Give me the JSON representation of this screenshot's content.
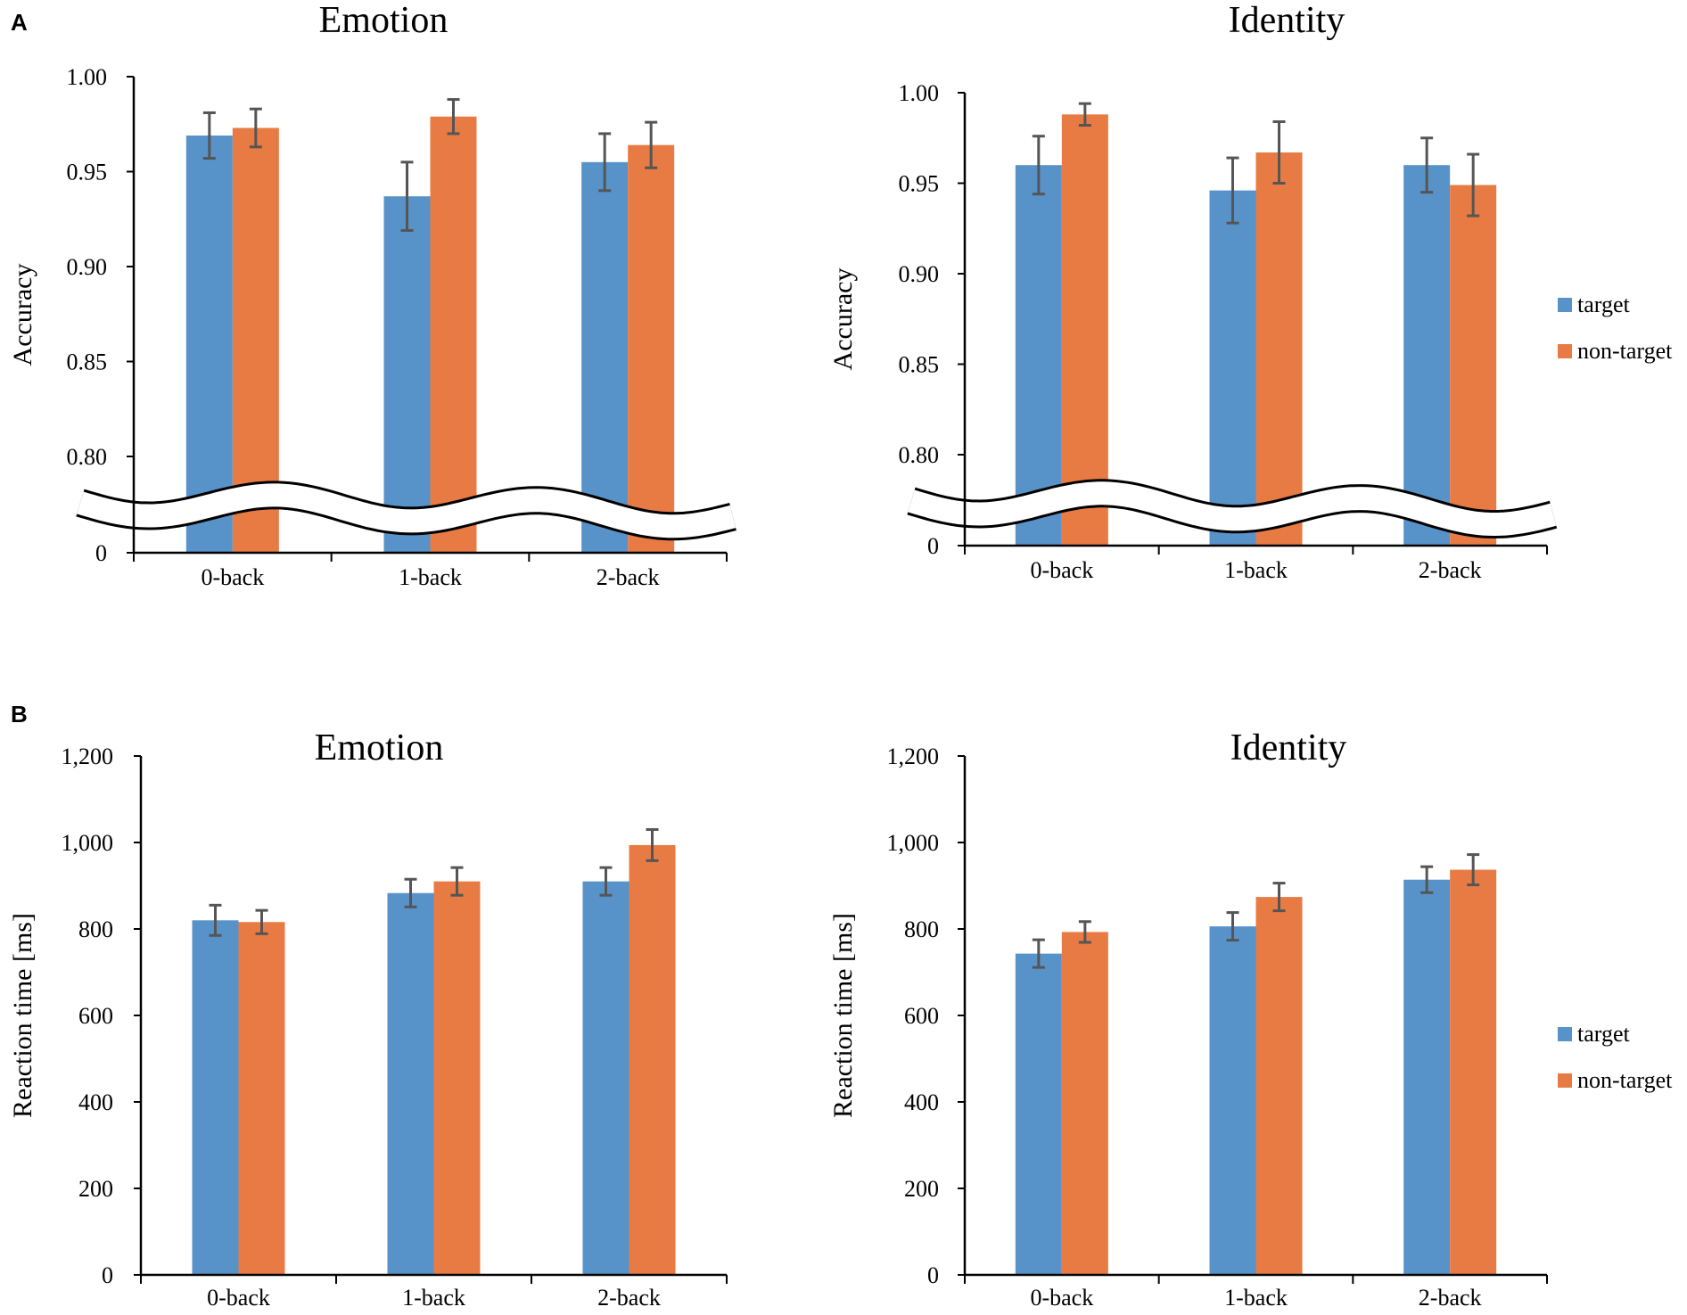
{
  "panels": {
    "a": {
      "label": "A"
    },
    "b": {
      "label": "B"
    }
  },
  "colors": {
    "target": "#5793c9",
    "non_target": "#e87b43",
    "error_bar": "#555555",
    "axis": "#000000"
  },
  "legend": {
    "target": "target",
    "non_target": "non-target"
  },
  "chart_data": [
    {
      "type": "bar",
      "panel": "A",
      "title": "Emotion",
      "xlabel": "",
      "ylabel": "Accuracy",
      "ylim": [
        0.8,
        1.0
      ],
      "axis_break": true,
      "yticks": [
        "0",
        "0.80",
        "0.85",
        "0.90",
        "0.95",
        "1.00"
      ],
      "categories": [
        "0-back",
        "1-back",
        "2-back"
      ],
      "series": [
        {
          "name": "target",
          "values": [
            0.969,
            0.937,
            0.955
          ],
          "errors": [
            0.012,
            0.018,
            0.015
          ]
        },
        {
          "name": "non-target",
          "values": [
            0.973,
            0.979,
            0.964
          ],
          "errors": [
            0.01,
            0.009,
            0.012
          ]
        }
      ]
    },
    {
      "type": "bar",
      "panel": "A",
      "title": "Identity",
      "xlabel": "",
      "ylabel": "Accuracy",
      "ylim": [
        0.8,
        1.0
      ],
      "axis_break": true,
      "yticks": [
        "0",
        "0.80",
        "0.85",
        "0.90",
        "0.95",
        "1.00"
      ],
      "categories": [
        "0-back",
        "1-back",
        "2-back"
      ],
      "series": [
        {
          "name": "target",
          "values": [
            0.96,
            0.946,
            0.96
          ],
          "errors": [
            0.016,
            0.018,
            0.015
          ]
        },
        {
          "name": "non-target",
          "values": [
            0.988,
            0.967,
            0.949
          ],
          "errors": [
            0.006,
            0.017,
            0.017
          ]
        }
      ],
      "legend_position": "right"
    },
    {
      "type": "bar",
      "panel": "B",
      "title": "Emotion",
      "xlabel": "",
      "ylabel": "Reaction time [ms]",
      "ylim": [
        0,
        1200
      ],
      "axis_break": false,
      "yticks": [
        "0",
        "200",
        "400",
        "600",
        "800",
        "1,000",
        "1,200"
      ],
      "categories": [
        "0-back",
        "1-back",
        "2-back"
      ],
      "series": [
        {
          "name": "target",
          "values": [
            820,
            883,
            910
          ],
          "errors": [
            35,
            32,
            32
          ]
        },
        {
          "name": "non-target",
          "values": [
            816,
            910,
            994
          ],
          "errors": [
            27,
            32,
            36
          ]
        }
      ]
    },
    {
      "type": "bar",
      "panel": "B",
      "title": "Identity",
      "xlabel": "",
      "ylabel": "Reaction time [ms]",
      "ylim": [
        0,
        1200
      ],
      "axis_break": false,
      "yticks": [
        "0",
        "200",
        "400",
        "600",
        "800",
        "1,000",
        "1,200"
      ],
      "categories": [
        "0-back",
        "1-back",
        "2-back"
      ],
      "series": [
        {
          "name": "target",
          "values": [
            743,
            806,
            914
          ],
          "errors": [
            32,
            32,
            30
          ]
        },
        {
          "name": "non-target",
          "values": [
            793,
            874,
            937
          ],
          "errors": [
            24,
            32,
            35
          ]
        }
      ],
      "legend_position": "right"
    }
  ]
}
